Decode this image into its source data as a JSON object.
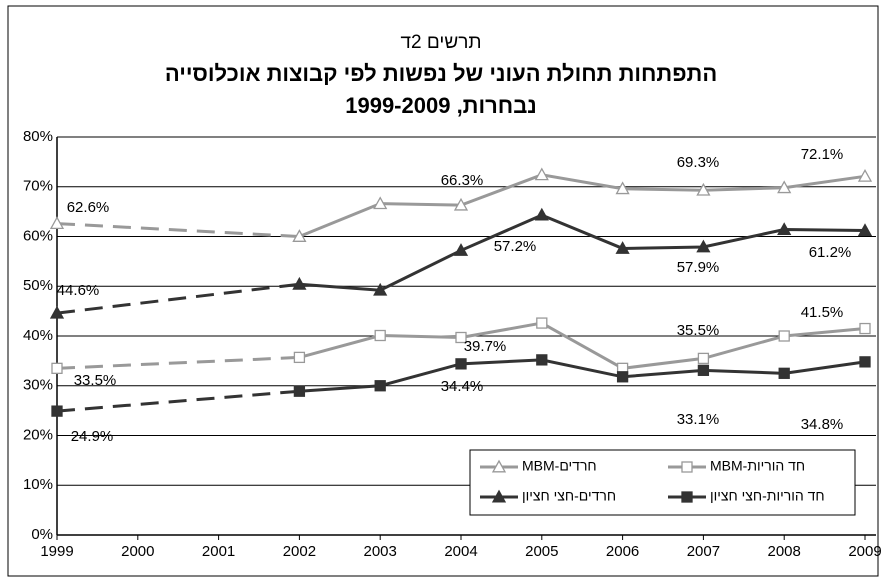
{
  "chart_data": {
    "type": "line",
    "title": "תרשים 2ד",
    "subtitle": [
      "התפתחות תחולת העוני של נפשות לפי קבוצות אוכלוסייה",
      "נבחרות, 1999-2009"
    ],
    "x": [
      1999,
      2000,
      2001,
      2002,
      2003,
      2004,
      2005,
      2006,
      2007,
      2008,
      2009
    ],
    "xlim": [
      1999,
      2009
    ],
    "xticks": [
      1999,
      2000,
      2001,
      2002,
      2003,
      2004,
      2005,
      2006,
      2007,
      2008,
      2009
    ],
    "ylim": [
      0,
      80
    ],
    "yticks": [
      {
        "value": 0,
        "label": "0%"
      },
      {
        "value": 10,
        "label": "10%"
      },
      {
        "value": 20,
        "label": "20%"
      },
      {
        "value": 30,
        "label": "30%"
      },
      {
        "value": 40,
        "label": "40%"
      },
      {
        "value": 50,
        "label": "50%"
      },
      {
        "value": 60,
        "label": "60%"
      },
      {
        "value": 70,
        "label": "70%"
      },
      {
        "value": 80,
        "label": "80%"
      }
    ],
    "grid": true,
    "series": [
      {
        "name": "חרדים-MBM",
        "color": "#999999",
        "marker": "triangle",
        "filled": false,
        "values": [
          62.6,
          null,
          null,
          60.0,
          66.6,
          66.3,
          72.4,
          69.6,
          69.3,
          69.8,
          72.1
        ],
        "value_labels": [
          "62.6%",
          null,
          null,
          null,
          null,
          "66.3%",
          null,
          null,
          "69.3%",
          null,
          "72.1%"
        ]
      },
      {
        "name": "חרדים-חצי חציון",
        "color": "#333333",
        "marker": "triangle",
        "filled": true,
        "values": [
          44.6,
          null,
          null,
          50.4,
          49.2,
          57.2,
          64.3,
          57.6,
          57.9,
          61.4,
          61.2
        ],
        "value_labels": [
          "44.6%",
          null,
          null,
          null,
          null,
          "57.2%",
          null,
          null,
          "57.9%",
          null,
          "61.2%"
        ]
      },
      {
        "name": "חד הוריות-MBM",
        "color": "#999999",
        "marker": "square",
        "filled": false,
        "values": [
          33.5,
          null,
          null,
          35.7,
          40.1,
          39.7,
          42.6,
          33.5,
          35.5,
          40.0,
          41.5
        ],
        "value_labels": [
          "33.5%",
          null,
          null,
          null,
          null,
          "39.7%",
          null,
          null,
          "35.5%",
          null,
          "41.5%"
        ]
      },
      {
        "name": "חד הוריות-חצי חציון",
        "color": "#333333",
        "marker": "square",
        "filled": true,
        "values": [
          24.9,
          null,
          null,
          28.9,
          30.0,
          34.4,
          35.2,
          31.8,
          33.1,
          32.5,
          34.8
        ],
        "value_labels": [
          "24.9%",
          null,
          null,
          null,
          null,
          "34.4%",
          null,
          null,
          "33.1%",
          null,
          "34.8%"
        ]
      }
    ]
  }
}
